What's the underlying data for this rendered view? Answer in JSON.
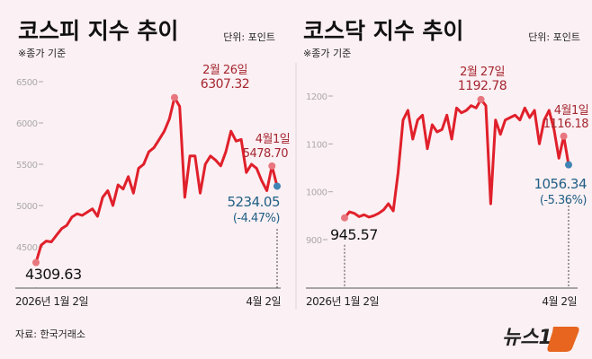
{
  "colors": {
    "background": "#fbf0f3",
    "line": "#e0202b",
    "start_marker": "#e8767e",
    "end_marker": "#3f84b5",
    "annotation_red": "#a52630",
    "annotation_blue": "#1f5f86"
  },
  "source": "자료: 한국거래소",
  "logo": "뉴스1",
  "chart_data": [
    {
      "type": "line",
      "title": "코스피 지수 추이",
      "unit": "단위: 포인트",
      "note": "※종가 기준",
      "x_labels": [
        "2026년 1월 2일",
        "4월 2일"
      ],
      "yticks": [
        4500,
        5000,
        5500,
        6000,
        6500
      ],
      "ytick_labels": [
        "4500",
        "5000",
        "5500",
        "6000",
        "6500"
      ],
      "ylim": [
        4250,
        6650
      ],
      "grid": false,
      "values": [
        4309.63,
        4520,
        4570,
        4560,
        4640,
        4720,
        4760,
        4860,
        4900,
        4880,
        4920,
        4960,
        4870,
        5100,
        5180,
        5000,
        5250,
        5200,
        5350,
        5150,
        5450,
        5500,
        5650,
        5700,
        5800,
        5900,
        6050,
        6307.32,
        6200,
        5100,
        5600,
        5600,
        5150,
        5500,
        5600,
        5550,
        5480,
        5650,
        5900,
        5780,
        5800,
        5400,
        5500,
        5450,
        5300,
        5180,
        5478.7,
        5234.05
      ],
      "annotations": {
        "start": {
          "value": "4309.63"
        },
        "peak": {
          "date": "2월 26일",
          "value": "6307.32"
        },
        "prev": {
          "date": "4월1일",
          "value": "5478.70"
        },
        "end": {
          "value": "5234.05",
          "change": "(-4.47%)"
        }
      }
    },
    {
      "type": "line",
      "title": "코스닥 지수 추이",
      "unit": "단위: 포인트",
      "note": "※종가 기준",
      "x_labels": [
        "2026년 1월 2일",
        "4월 2일"
      ],
      "yticks": [
        900,
        1000,
        1100,
        1200
      ],
      "ytick_labels": [
        "900",
        "1000",
        "1100",
        "1200"
      ],
      "ylim": [
        870,
        1260
      ],
      "grid": false,
      "values": [
        945.57,
        958,
        955,
        948,
        952,
        947,
        950,
        955,
        962,
        975,
        960,
        1040,
        1150,
        1170,
        1110,
        1150,
        1160,
        1090,
        1140,
        1125,
        1130,
        1160,
        1110,
        1175,
        1165,
        1170,
        1180,
        1175,
        1192.78,
        1180,
        975,
        1150,
        1120,
        1150,
        1155,
        1160,
        1150,
        1175,
        1155,
        1170,
        1100,
        1150,
        1170,
        1130,
        1070,
        1116.18,
        1056.34
      ],
      "annotations": {
        "start": {
          "value": "945.57"
        },
        "peak": {
          "date": "2월 27일",
          "value": "1192.78"
        },
        "prev": {
          "date": "4월1일",
          "value": "1116.18"
        },
        "end": {
          "value": "1056.34",
          "change": "(-5.36%)"
        }
      }
    }
  ]
}
